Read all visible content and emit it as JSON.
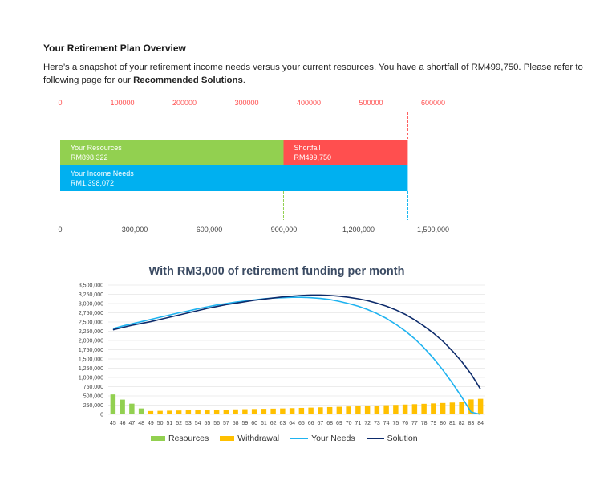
{
  "header": {
    "title": "Your Retirement Plan Overview",
    "desc_before": "Here’s a snapshot of your retirement income needs versus your current resources. You have a shortfall of RM499,750. Please refer to following page for our ",
    "desc_bold": "Recommended Solutions",
    "desc_after": "."
  },
  "colors": {
    "resources": "#92d050",
    "shortfall": "#ff4f4f",
    "income": "#00b0f0",
    "withdrawal": "#ffc000",
    "needs": "#1fb3f0",
    "solution": "#0d2b6b",
    "top_axis_text": "#ff4f4f"
  },
  "chart_data": [
    {
      "type": "bar",
      "orientation": "horizontal",
      "top_axis_ticks": [
        "0",
        "100000",
        "200000",
        "300000",
        "400000",
        "500000",
        "600000"
      ],
      "bottom_axis_ticks": [
        "0",
        "300,000",
        "600,000",
        "900,000",
        "1,200,000",
        "1,500,000"
      ],
      "bars": [
        {
          "name": "Your Resources",
          "label": "RM898,322",
          "value": 898322,
          "start": 0
        },
        {
          "name": "Shortfall",
          "label": "RM499,750",
          "value": 499750,
          "start": 898322
        },
        {
          "name": "Your Income Needs",
          "label": "RM1,398,072",
          "value": 1398072,
          "start": 0
        }
      ],
      "xlim": [
        0,
        1600000
      ]
    },
    {
      "type": "line",
      "title": "With RM3,000 of retirement funding per month",
      "ylim": [
        0,
        3500000
      ],
      "y_ticks": [
        "3,500,000",
        "3,250,000",
        "3,000,000",
        "2,750,000",
        "2,500,000",
        "2,250,000",
        "2,000,000",
        "1,750,000",
        "1,500,000",
        "1,250,000",
        "1,000,000",
        "750,000",
        "500,000",
        "250,000",
        "0"
      ],
      "categories": [
        "45",
        "46",
        "47",
        "48",
        "49",
        "50",
        "51",
        "52",
        "53",
        "54",
        "55",
        "56",
        "57",
        "58",
        "59",
        "60",
        "61",
        "62",
        "63",
        "64",
        "65",
        "66",
        "67",
        "68",
        "69",
        "70",
        "71",
        "72",
        "73",
        "74",
        "75",
        "76",
        "77",
        "78",
        "79",
        "80",
        "81",
        "82",
        "83",
        "84"
      ],
      "series": [
        {
          "name": "Resources",
          "kind": "bar",
          "values": [
            540000,
            400000,
            290000,
            160000,
            0,
            0,
            0,
            0,
            0,
            0,
            0,
            0,
            0,
            0,
            0,
            0,
            0,
            0,
            0,
            0,
            0,
            0,
            0,
            0,
            0,
            0,
            0,
            0,
            0,
            0,
            0,
            0,
            0,
            0,
            0,
            0,
            0,
            0,
            0,
            0
          ]
        },
        {
          "name": "Withdrawal",
          "kind": "bar",
          "values": [
            0,
            0,
            0,
            0,
            90000,
            95000,
            100000,
            105000,
            110000,
            115000,
            120000,
            125000,
            130000,
            135000,
            140000,
            145000,
            150000,
            155000,
            160000,
            168000,
            175000,
            182000,
            190000,
            197000,
            205000,
            213000,
            221000,
            230000,
            238000,
            247000,
            256000,
            266000,
            276000,
            286000,
            297000,
            308000,
            320000,
            332000,
            405000,
            420000
          ]
        },
        {
          "name": "Your Needs",
          "kind": "line",
          "values": [
            2320000,
            2390000,
            2450000,
            2510000,
            2570000,
            2630000,
            2690000,
            2750000,
            2800000,
            2860000,
            2910000,
            2960000,
            3000000,
            3040000,
            3070000,
            3100000,
            3130000,
            3150000,
            3160000,
            3170000,
            3170000,
            3160000,
            3140000,
            3110000,
            3060000,
            3000000,
            2930000,
            2840000,
            2730000,
            2600000,
            2440000,
            2260000,
            2050000,
            1800000,
            1520000,
            1200000,
            850000,
            470000,
            60000,
            0
          ]
        },
        {
          "name": "Solution",
          "kind": "line",
          "values": [
            2290000,
            2350000,
            2410000,
            2460000,
            2510000,
            2570000,
            2630000,
            2690000,
            2750000,
            2810000,
            2870000,
            2920000,
            2970000,
            3010000,
            3050000,
            3090000,
            3120000,
            3150000,
            3180000,
            3200000,
            3220000,
            3230000,
            3230000,
            3220000,
            3200000,
            3170000,
            3130000,
            3080000,
            3010000,
            2930000,
            2830000,
            2710000,
            2560000,
            2390000,
            2200000,
            1980000,
            1720000,
            1430000,
            1090000,
            680000
          ]
        }
      ]
    }
  ]
}
